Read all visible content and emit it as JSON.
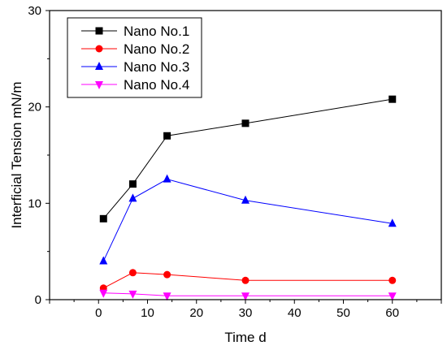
{
  "chart_data": {
    "type": "line",
    "xlabel": "Time d",
    "ylabel": "Interficial Tension  mN/m",
    "xlim": [
      -10,
      70
    ],
    "ylim": [
      0,
      30
    ],
    "xticks": [
      0,
      10,
      20,
      30,
      40,
      50,
      60
    ],
    "yticks": [
      0,
      10,
      20,
      30
    ],
    "x": [
      1,
      7,
      14,
      30,
      60
    ],
    "grid": false,
    "legend_position": "top-left",
    "series": [
      {
        "name": "Nano No.1",
        "values": [
          8.4,
          12.0,
          17.0,
          18.3,
          20.8
        ],
        "color": "#000000",
        "marker": "square"
      },
      {
        "name": "Nano No.2",
        "values": [
          1.2,
          2.8,
          2.6,
          2.0,
          2.0
        ],
        "color": "#ff0000",
        "marker": "circle"
      },
      {
        "name": "Nano No.3",
        "values": [
          4.0,
          10.5,
          12.5,
          10.3,
          7.9
        ],
        "color": "#0000ff",
        "marker": "triangle-up"
      },
      {
        "name": "Nano No.4",
        "values": [
          0.7,
          0.6,
          0.4,
          0.4,
          0.4
        ],
        "color": "#ff00ff",
        "marker": "triangle-down"
      }
    ]
  }
}
